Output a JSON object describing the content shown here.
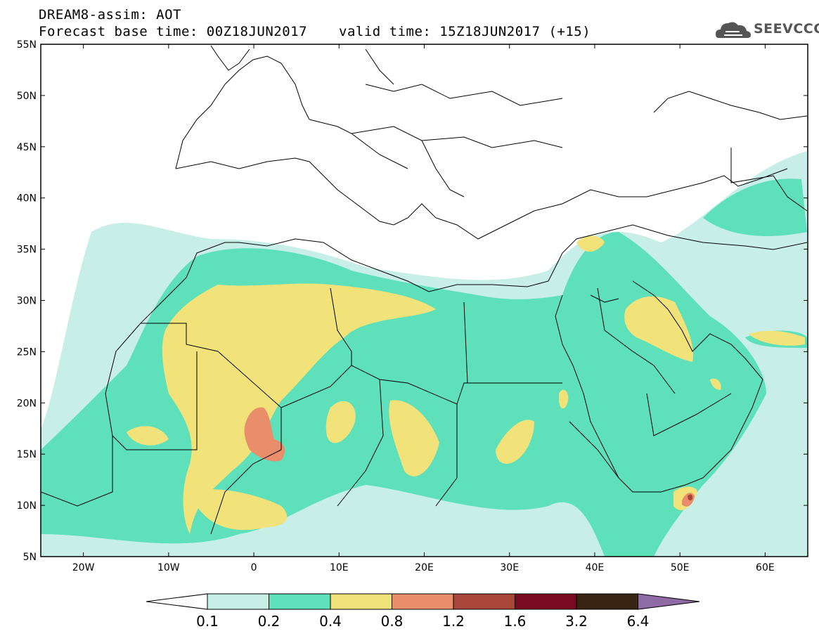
{
  "header": {
    "title": "DREAM8-assim: AOT",
    "base_time": "Forecast base time: 00Z18JUN2017",
    "valid_time": "valid time: 15Z18JUN2017 (+15)",
    "logo_text": "SEEVCCC"
  },
  "map": {
    "projection": "lat-lon",
    "lon_range": [
      -25,
      65
    ],
    "lat_range": [
      5,
      55
    ],
    "lat_ticks": [
      "55N",
      "50N",
      "45N",
      "40N",
      "35N",
      "30N",
      "25N",
      "20N",
      "15N",
      "10N",
      "5N"
    ],
    "lon_ticks": [
      "20W",
      "10W",
      "0",
      "10E",
      "20E",
      "30E",
      "40E",
      "50E",
      "60E"
    ],
    "features": [
      "coastlines",
      "country-borders",
      "aerosol-optical-thickness-shading"
    ]
  },
  "colorbar": {
    "labels": [
      "0.1",
      "0.2",
      "0.4",
      "0.8",
      "1.2",
      "1.6",
      "3.2",
      "6.4"
    ],
    "colors": [
      "#ffffff",
      "#c7efe8",
      "#5ee0ba",
      "#f1e27a",
      "#e98d6a",
      "#a8463a",
      "#7a0a22",
      "#3a2414",
      "#8e6ba5"
    ]
  }
}
